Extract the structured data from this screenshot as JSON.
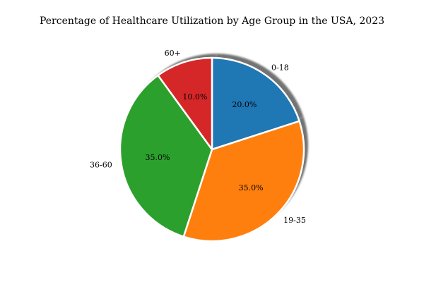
{
  "chart_data": {
    "type": "pie",
    "title": "Percentage of Healthcare Utilization by Age Group in the USA, 2023",
    "categories": [
      "0-18",
      "19-35",
      "36-60",
      "60+"
    ],
    "values": [
      20.0,
      35.0,
      35.0,
      10.0
    ],
    "value_labels": [
      "20.0%",
      "35.0%",
      "35.0%",
      "10.0%"
    ],
    "colors": [
      "#1f77b4",
      "#ff7f0e",
      "#2ca02c",
      "#d62728"
    ],
    "start_angle_deg": 90,
    "direction": "clockwise",
    "shadow": true,
    "edge_color": "#ffffff"
  }
}
